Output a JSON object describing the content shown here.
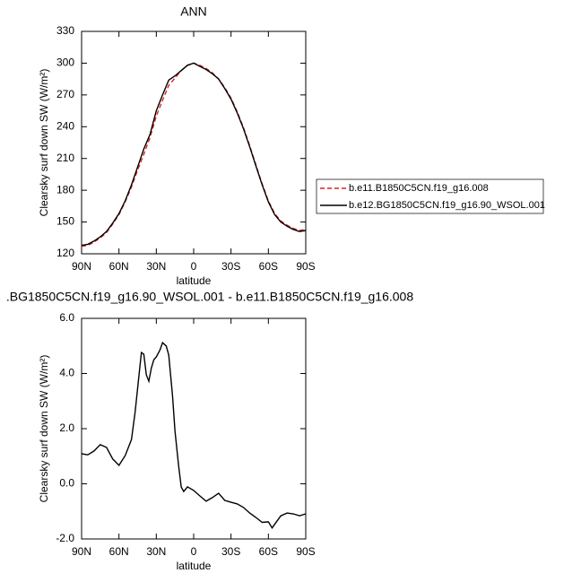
{
  "chart_data": [
    {
      "type": "line",
      "title": "ANN",
      "x_label": "latitude",
      "y_label": "Clearsky surf down SW (W/m²)",
      "x": [
        90,
        85,
        80,
        75,
        70,
        65,
        60,
        55,
        50,
        45,
        40,
        35,
        30,
        25,
        20,
        15,
        10,
        5,
        0,
        -5,
        -10,
        -15,
        -20,
        -25,
        -30,
        -35,
        -40,
        -45,
        -50,
        -55,
        -60,
        -65,
        -70,
        -75,
        -80,
        -85,
        -90
      ],
      "series": [
        {
          "name": "b.e11.B1850C5CN.f19_g16.008",
          "color": "#e0211f",
          "dashed": true,
          "values": [
            127,
            128,
            131,
            135,
            140,
            148,
            157,
            169,
            183,
            199,
            214,
            230,
            250,
            265,
            279,
            286,
            293,
            298,
            300,
            298,
            295,
            291,
            285,
            277,
            267,
            254,
            239,
            222,
            204,
            186,
            170,
            158,
            151,
            147,
            144,
            142,
            143
          ]
        },
        {
          "name": "b.e12.BG1850C5CN.f19_g16.90_WSOL.001",
          "color": "#000000",
          "dashed": false,
          "values": [
            128,
            129,
            132,
            136,
            141,
            149,
            158,
            170,
            185,
            202,
            219,
            233,
            255,
            270,
            284,
            288,
            293,
            298,
            300,
            297,
            294,
            290,
            285,
            276,
            266,
            253,
            238,
            221,
            203,
            185,
            169,
            157,
            150,
            146,
            143,
            141,
            142
          ]
        }
      ],
      "xlim": [
        90,
        -90
      ],
      "xticks": [
        {
          "value": 90,
          "label": "90N"
        },
        {
          "value": 60,
          "label": "60N"
        },
        {
          "value": 30,
          "label": "30N"
        },
        0,
        {
          "value": -30,
          "label": "30S"
        },
        {
          "value": -60,
          "label": "60S"
        },
        {
          "value": -90,
          "label": "90S"
        }
      ],
      "ylim": [
        120,
        330
      ],
      "yticks": [
        120,
        150,
        180,
        210,
        240,
        270,
        300,
        330
      ],
      "legend": "right"
    },
    {
      "type": "line",
      "title": ".BG1850C5CN.f19_g16.90_WSOL.001 - b.e11.B1850C5CN.f19_g16.008",
      "x_label": "latitude",
      "y_label": "Clearsky surf down SW (W/m²)",
      "x": [
        90,
        85,
        80,
        75,
        70,
        65,
        60,
        55,
        50,
        47,
        44,
        42,
        40,
        38,
        36,
        34,
        32,
        30,
        27,
        25,
        22,
        20,
        17,
        15,
        12,
        10,
        8,
        5,
        0,
        -5,
        -10,
        -15,
        -20,
        -25,
        -30,
        -35,
        -40,
        -45,
        -50,
        -55,
        -60,
        -63,
        -65,
        -70,
        -75,
        -80,
        -85,
        -90
      ],
      "series": [
        {
          "name": null,
          "color": "#000000",
          "dashed": false,
          "values": [
            1.09,
            1.05,
            1.19,
            1.42,
            1.32,
            0.9,
            0.67,
            1.02,
            1.6,
            2.6,
            3.9,
            4.76,
            4.7,
            3.95,
            3.72,
            4.2,
            4.5,
            4.6,
            4.86,
            5.12,
            5.0,
            4.67,
            3.2,
            1.9,
            0.63,
            -0.11,
            -0.28,
            -0.11,
            -0.24,
            -0.44,
            -0.63,
            -0.5,
            -0.34,
            -0.6,
            -0.67,
            -0.73,
            -0.86,
            -1.06,
            -1.22,
            -1.4,
            -1.38,
            -1.6,
            -1.47,
            -1.16,
            -1.06,
            -1.09,
            -1.16,
            -1.09
          ]
        }
      ],
      "xlim": [
        90,
        -90
      ],
      "xticks": [
        {
          "value": 90,
          "label": "90N"
        },
        {
          "value": 60,
          "label": "60N"
        },
        {
          "value": 30,
          "label": "30N"
        },
        0,
        {
          "value": -30,
          "label": "30S"
        },
        {
          "value": -60,
          "label": "60S"
        },
        {
          "value": -90,
          "label": "90S"
        }
      ],
      "ylim": [
        -2,
        6
      ],
      "yticks": [
        {
          "value": -2,
          "label": "-2.0"
        },
        {
          "value": 0,
          "label": "0.0"
        },
        {
          "value": 2,
          "label": "2.0"
        },
        {
          "value": 4,
          "label": "4.0"
        },
        {
          "value": 6,
          "label": "6.0"
        }
      ]
    }
  ]
}
